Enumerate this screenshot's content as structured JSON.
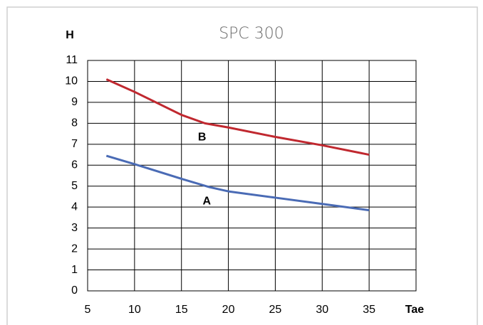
{
  "chart_data": {
    "type": "line",
    "title": "SPC 300",
    "x_label": "Tae",
    "y_label": "H",
    "xlim": [
      5,
      40
    ],
    "xticks": [
      5,
      10,
      15,
      20,
      25,
      30,
      35
    ],
    "ylim": [
      0,
      11
    ],
    "yticks": [
      0,
      1,
      2,
      3,
      4,
      5,
      6,
      7,
      8,
      9,
      10,
      11
    ],
    "grid": true,
    "series": [
      {
        "name": "B",
        "color": "#c0282f",
        "x": [
          7,
          10,
          15,
          17.5,
          20,
          25,
          30,
          35
        ],
        "values": [
          10.1,
          9.5,
          8.4,
          8.0,
          7.8,
          7.35,
          6.95,
          6.5
        ]
      },
      {
        "name": "A",
        "color": "#4a6bb5",
        "x": [
          7,
          10,
          15,
          18,
          20,
          25,
          30,
          35
        ],
        "values": [
          6.45,
          6.05,
          5.35,
          4.95,
          4.75,
          4.45,
          4.15,
          3.85
        ]
      }
    ]
  }
}
